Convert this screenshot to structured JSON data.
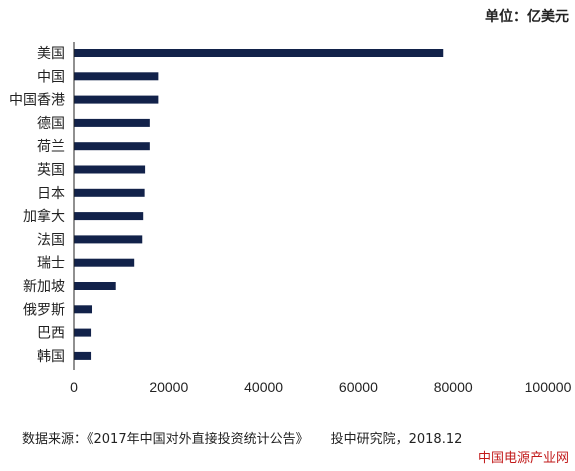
{
  "unit_label": "单位：亿美元",
  "source_label": "数据来源：",
  "source_title": "《2017年中国对外直接投资统计公告》",
  "source_org": "投中研究院，2018.12",
  "watermark": "中国电源产业网",
  "colors": {
    "bar": "#12224a",
    "axis": "#222222",
    "text": "#222222",
    "watermark": "#c21a1a"
  },
  "chart_data": {
    "type": "bar",
    "orientation": "horizontal",
    "categories": [
      "美国",
      "中国",
      "中国香港",
      "德国",
      "荷兰",
      "英国",
      "日本",
      "加拿大",
      "法国",
      "瑞士",
      "新加坡",
      "俄罗斯",
      "巴西",
      "韩国"
    ],
    "values": [
      77900,
      17800,
      17800,
      16000,
      16000,
      15000,
      14900,
      14600,
      14400,
      12700,
      8800,
      3800,
      3600,
      3600
    ],
    "title": "",
    "xlabel": "",
    "ylabel": "",
    "xlim": [
      0,
      100000
    ],
    "xticks": [
      "0",
      "20000",
      "40000",
      "60000",
      "80000",
      "100000"
    ],
    "grid": false,
    "legend": "none"
  }
}
